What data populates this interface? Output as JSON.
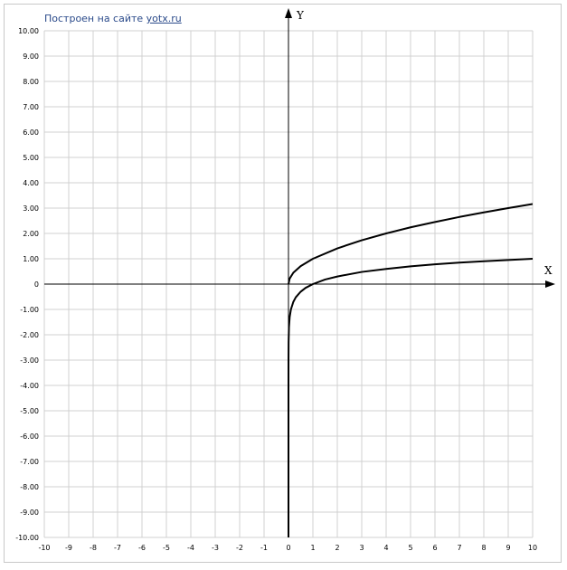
{
  "credit": {
    "text": "Построен на сайте",
    "link": "yotx.ru"
  },
  "chart_data": {
    "type": "line",
    "title": "",
    "xlabel": "X",
    "ylabel": "Y",
    "xlim": [
      -10,
      10
    ],
    "ylim": [
      -10,
      10
    ],
    "grid": true,
    "x_ticks": [
      "-10",
      "-9",
      "-8",
      "-7",
      "-6",
      "-5",
      "-4",
      "-3",
      "-2",
      "-1",
      "0",
      "1",
      "2",
      "3",
      "4",
      "5",
      "6",
      "7",
      "8",
      "9",
      "10"
    ],
    "y_ticks": [
      "10.00",
      "9.00",
      "8.00",
      "7.00",
      "6.00",
      "5.00",
      "4.00",
      "3.00",
      "2.00",
      "1.00",
      "0",
      "-1.00",
      "-2.00",
      "-3.00",
      "-4.00",
      "-5.00",
      "-6.00",
      "-7.00",
      "-8.00",
      "-9.00",
      "-10.00"
    ],
    "series": [
      {
        "x": [
          0,
          0.05,
          0.2,
          0.5,
          1,
          2,
          3,
          4,
          5,
          6,
          7,
          8,
          9,
          10
        ],
        "y": [
          0,
          0.22,
          0.45,
          0.71,
          1,
          1.41,
          1.73,
          2,
          2.24,
          2.45,
          2.65,
          2.83,
          3,
          3.16
        ]
      },
      {
        "x": [
          0.0001,
          0.001,
          0.005,
          0.02,
          0.05,
          0.1,
          0.2,
          0.3,
          0.5,
          0.7,
          1,
          1.5,
          2,
          3,
          4,
          5,
          6,
          7,
          8,
          9,
          10
        ],
        "y": [
          -4,
          -3,
          -2.3,
          -1.7,
          -1.3,
          -1,
          -0.7,
          -0.52,
          -0.3,
          -0.15,
          0,
          0.18,
          0.3,
          0.48,
          0.6,
          0.7,
          0.78,
          0.85,
          0.9,
          0.95,
          1
        ]
      }
    ],
    "colors": {
      "curve": "#000000",
      "grid": "#d0d0d0",
      "axis": "#000000"
    }
  }
}
